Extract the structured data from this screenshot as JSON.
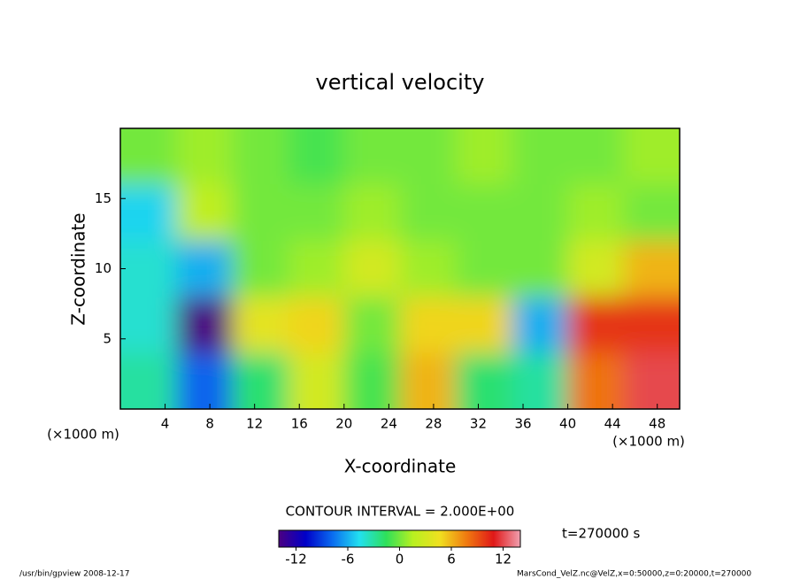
{
  "chart_data": {
    "type": "contour",
    "title": "vertical velocity",
    "x_label": "X-coordinate",
    "y_label": "Z-coordinate",
    "x_unit": "(×1000 m)",
    "y_unit": "(×1000 m)",
    "x": [
      2.5,
      7.5,
      12.5,
      17.5,
      22.5,
      27.5,
      32.5,
      37.5,
      42.5,
      47.5
    ],
    "y": [
      18,
      14,
      10,
      6,
      2
    ],
    "values": [
      [
        0,
        1,
        0,
        -1,
        0,
        0,
        1,
        0,
        0,
        1
      ],
      [
        -5,
        2,
        0,
        0,
        1,
        0,
        0,
        0,
        1,
        0
      ],
      [
        -4,
        -6,
        0,
        1,
        3,
        1,
        0,
        0,
        3,
        6
      ],
      [
        -4,
        -14,
        4,
        5,
        0,
        5,
        5,
        -6,
        10,
        10
      ],
      [
        -3,
        -8,
        -2,
        3,
        -1,
        6,
        -2,
        -3,
        8,
        12
      ]
    ],
    "xlim": [
      0,
      50
    ],
    "ylim": [
      0,
      20
    ],
    "xticks": [
      4,
      8,
      12,
      16,
      20,
      24,
      28,
      32,
      36,
      40,
      44,
      48
    ],
    "yticks": [
      5,
      10,
      15
    ],
    "clim": [
      -14,
      14
    ],
    "cticks": [
      -12,
      -6,
      0,
      6,
      12
    ],
    "colormap": [
      "#4b0082",
      "#0000c8",
      "#0a6cf0",
      "#22e0f0",
      "#2ee05a",
      "#b8f020",
      "#f0e020",
      "#f07a10",
      "#e01818",
      "#f0a0b0"
    ],
    "contour_interval": "CONTOUR INTERVAL = 2.000E+00",
    "time_label": "t=270000 s",
    "footer_left": "/usr/bin/gpview  2008-12-17",
    "footer_right": "MarsCond_VelZ.nc@VelZ,x=0:50000,z=0:20000,t=270000"
  }
}
